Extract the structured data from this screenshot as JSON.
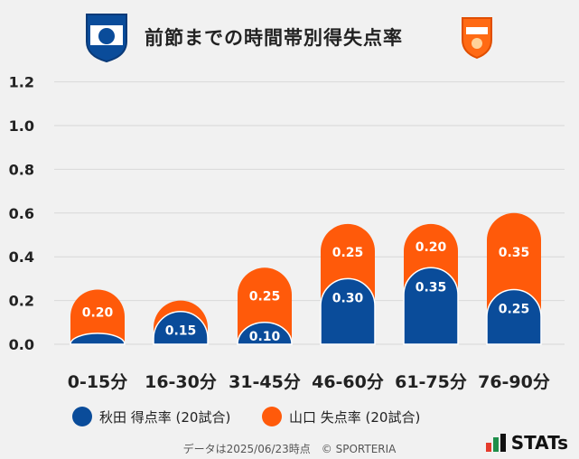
{
  "title": "前節までの時間帯別得失点率",
  "logos": {
    "home_badge_text": "AKITA BLAUBLITZ",
    "away_badge_text": "RENOFA"
  },
  "colors": {
    "home": "#0a4c9a",
    "away": "#ff5a0a",
    "grid": "#d8d8d8",
    "background": "#f1f1f1"
  },
  "chart_data": {
    "type": "bar",
    "stacked": true,
    "categories": [
      "0-15分",
      "16-30分",
      "31-45分",
      "46-60分",
      "61-75分",
      "76-90分"
    ],
    "series": [
      {
        "name": "秋田 得点率 (20試合)",
        "values": [
          0.05,
          0.15,
          0.1,
          0.3,
          0.35,
          0.25
        ],
        "labels": [
          "",
          "0.15",
          "0.10",
          "0.30",
          "0.35",
          "0.25"
        ]
      },
      {
        "name": "山口 失点率 (20試合)",
        "values": [
          0.2,
          0.05,
          0.25,
          0.25,
          0.2,
          0.35
        ],
        "labels": [
          "0.20",
          "",
          "0.25",
          "0.25",
          "0.20",
          "0.35"
        ]
      }
    ],
    "yticks": [
      "0.0",
      "0.2",
      "0.4",
      "0.6",
      "0.8",
      "1.0",
      "1.2"
    ],
    "ylim": [
      0,
      1.2
    ],
    "grid": true,
    "legend_position": "bottom"
  },
  "footer": {
    "note": "データは2025/06/23時点　© SPORTERIA",
    "brand": "STATs"
  }
}
